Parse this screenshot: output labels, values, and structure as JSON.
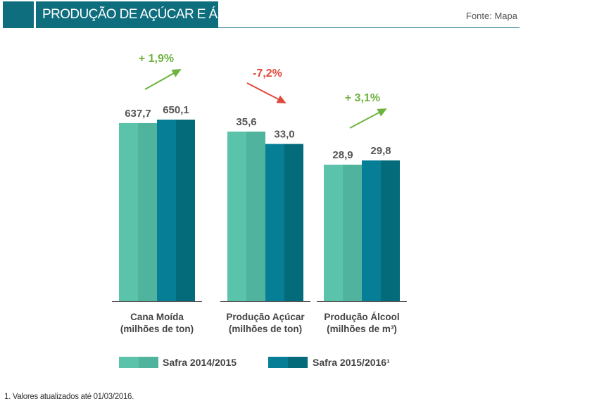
{
  "header": {
    "title": "PRODUÇÃO DE AÇÚCAR E ÁLCOOL",
    "source": "Fonte: Mapa"
  },
  "chart_data": {
    "type": "bar",
    "categories": [
      [
        "Cana Moída",
        "(milhões de ton)"
      ],
      [
        "Produção Açúcar",
        "(milhões de ton)"
      ],
      [
        "Produção Álcool",
        "(milhões de m³)"
      ]
    ],
    "series": [
      {
        "name": "Safra 2014/2015",
        "values": [
          637.7,
          35.6,
          28.9
        ],
        "labels": [
          "637,7",
          "35,6",
          "28,9"
        ],
        "color_light": "#5cc3ab",
        "color_dark": "#4fb39e"
      },
      {
        "name": "Safra 2015/2016¹",
        "values": [
          650.1,
          33.0,
          29.8
        ],
        "labels": [
          "650,1",
          "33,0",
          "29,8"
        ],
        "color_light": "#057e96",
        "color_dark": "#036b79"
      }
    ],
    "changes": [
      {
        "label": "+ 1,9%",
        "direction": "up",
        "color": "#6db33f"
      },
      {
        "label": "-7,2%",
        "direction": "down",
        "color": "#e0493b"
      },
      {
        "label": "+ 3,1%",
        "direction": "up",
        "color": "#6db33f"
      }
    ],
    "legend_position": "bottom"
  },
  "footnote": "1. Valores atualizados até 01/03/2016."
}
